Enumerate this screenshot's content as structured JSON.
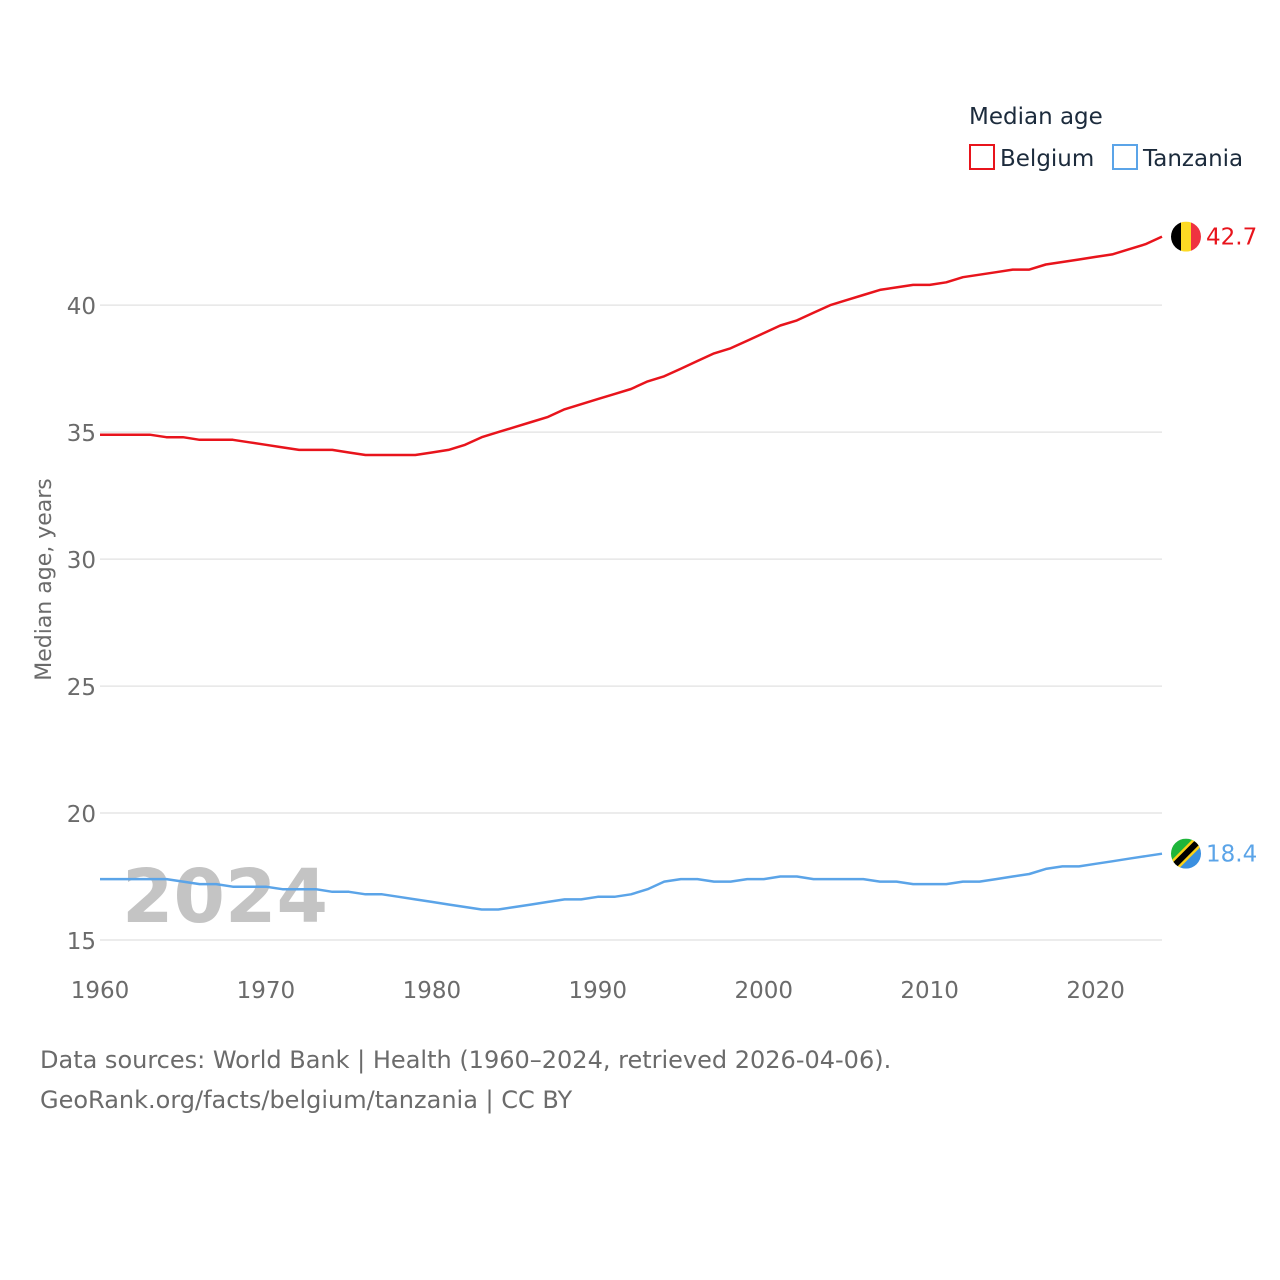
{
  "chart_data": {
    "type": "line",
    "title": "",
    "xlabel": "",
    "ylabel": "Median age, years",
    "xlim": [
      1960,
      2024
    ],
    "ylim": [
      15,
      43
    ],
    "yticks": [
      15,
      20,
      25,
      30,
      35,
      40
    ],
    "xticks": [
      1960,
      1970,
      1980,
      1990,
      2000,
      2010,
      2020
    ],
    "grid": true,
    "legend_title": "Median age",
    "legend_position": "top-right",
    "year_label": "2024",
    "x": [
      1960,
      1961,
      1962,
      1963,
      1964,
      1965,
      1966,
      1967,
      1968,
      1969,
      1970,
      1971,
      1972,
      1973,
      1974,
      1975,
      1976,
      1977,
      1978,
      1979,
      1980,
      1981,
      1982,
      1983,
      1984,
      1985,
      1986,
      1987,
      1988,
      1989,
      1990,
      1991,
      1992,
      1993,
      1994,
      1995,
      1996,
      1997,
      1998,
      1999,
      2000,
      2001,
      2002,
      2003,
      2004,
      2005,
      2006,
      2007,
      2008,
      2009,
      2010,
      2011,
      2012,
      2013,
      2014,
      2015,
      2016,
      2017,
      2018,
      2019,
      2020,
      2021,
      2022,
      2023,
      2024
    ],
    "series": [
      {
        "name": "Belgium",
        "color": "#e8141c",
        "end_label": "42.7",
        "flag": "belgium-flag-icon",
        "values": [
          34.9,
          34.9,
          34.9,
          34.9,
          34.8,
          34.8,
          34.7,
          34.7,
          34.7,
          34.6,
          34.5,
          34.4,
          34.3,
          34.3,
          34.3,
          34.2,
          34.1,
          34.1,
          34.1,
          34.1,
          34.2,
          34.3,
          34.5,
          34.8,
          35.0,
          35.2,
          35.4,
          35.6,
          35.9,
          36.1,
          36.3,
          36.5,
          36.7,
          37.0,
          37.2,
          37.5,
          37.8,
          38.1,
          38.3,
          38.6,
          38.9,
          39.2,
          39.4,
          39.7,
          40.0,
          40.2,
          40.4,
          40.6,
          40.7,
          40.8,
          40.8,
          40.9,
          41.1,
          41.2,
          41.3,
          41.4,
          41.4,
          41.6,
          41.7,
          41.8,
          41.9,
          42.0,
          42.2,
          42.4,
          42.7
        ]
      },
      {
        "name": "Tanzania",
        "color": "#5ba4e8",
        "end_label": "18.4",
        "flag": "tanzania-flag-icon",
        "values": [
          17.4,
          17.4,
          17.4,
          17.4,
          17.4,
          17.3,
          17.2,
          17.2,
          17.1,
          17.1,
          17.1,
          17.0,
          17.0,
          17.0,
          16.9,
          16.9,
          16.8,
          16.8,
          16.7,
          16.6,
          16.5,
          16.4,
          16.3,
          16.2,
          16.2,
          16.3,
          16.4,
          16.5,
          16.6,
          16.6,
          16.7,
          16.7,
          16.8,
          17.0,
          17.3,
          17.4,
          17.4,
          17.3,
          17.3,
          17.4,
          17.4,
          17.5,
          17.5,
          17.4,
          17.4,
          17.4,
          17.4,
          17.3,
          17.3,
          17.2,
          17.2,
          17.2,
          17.3,
          17.3,
          17.4,
          17.5,
          17.6,
          17.8,
          17.9,
          17.9,
          18.0,
          18.1,
          18.2,
          18.3,
          18.4
        ]
      }
    ]
  },
  "footer": {
    "line1": "Data sources: World Bank | Health (1960–2024, retrieved 2026-04-06).",
    "line2": "GeoRank.org/facts/belgium/tanzania | CC BY"
  }
}
